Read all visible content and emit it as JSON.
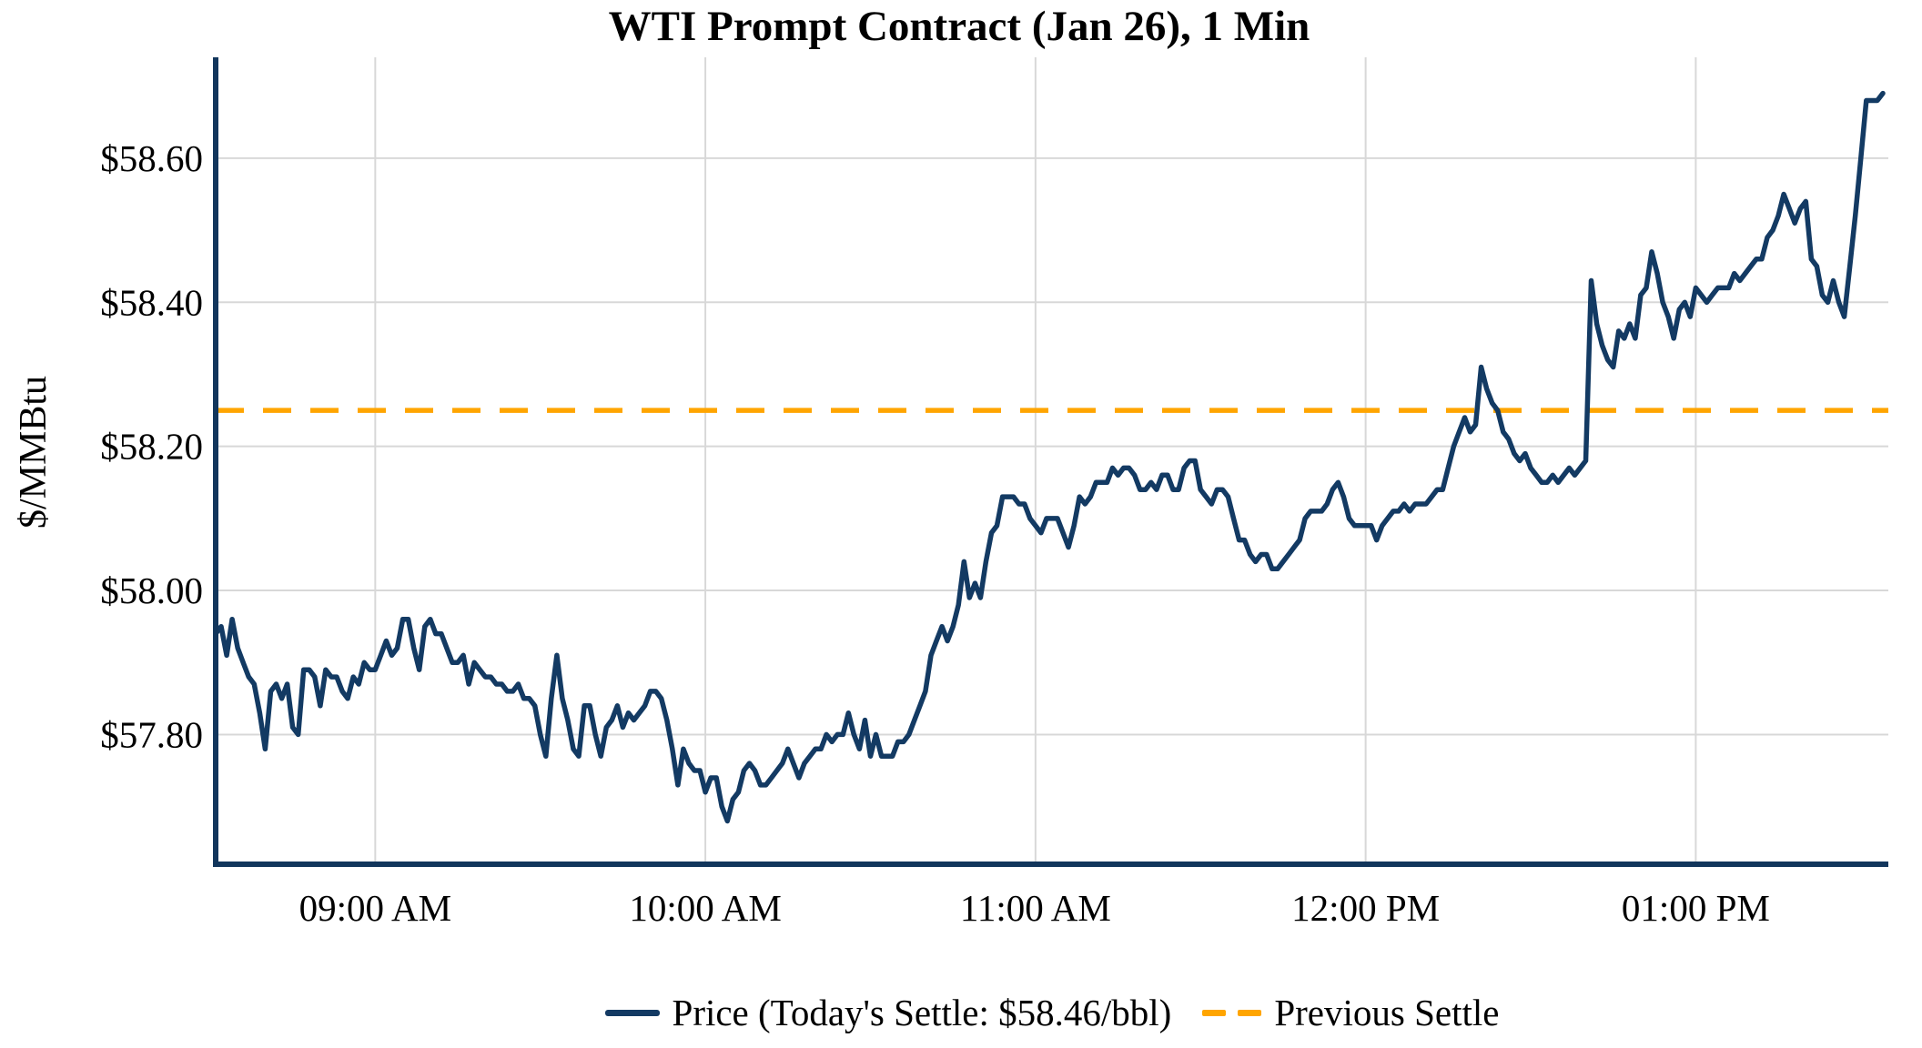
{
  "title": "WTI Prompt Contract (Jan 26), 1 Min",
  "y_axis": {
    "label": "$/MMBtu"
  },
  "legend": {
    "price_label": "Price (Today's Settle: $58.46/bbl)",
    "prev_settle_label": "Previous Settle"
  },
  "colors": {
    "price_line": "#133a63",
    "axis_spine": "#12365c",
    "prev_settle": "#ffa500",
    "grid": "#d8d8d8",
    "text": "#000000",
    "background": "#ffffff"
  },
  "chart_data": {
    "type": "line",
    "title": "WTI Prompt Contract (Jan 26), 1 Min",
    "xlabel": "",
    "ylabel": "$/MMBtu",
    "grid": true,
    "legend_position": "bottom",
    "ylim": [
      57.62,
      58.74
    ],
    "x_range_minutes": [
      511,
      815
    ],
    "x_tick_labels": [
      "09:00 AM",
      "10:00 AM",
      "11:00 AM",
      "12:00 PM",
      "01:00 PM"
    ],
    "y_ticks": [
      57.8,
      58.0,
      58.2,
      58.4,
      58.6
    ],
    "y_tick_prefix": "$",
    "previous_settle": 58.25,
    "todays_settle": 58.46,
    "series": [
      {
        "name": "Price",
        "start_time": "08:31 AM",
        "interval_minutes": 1,
        "values": [
          57.94,
          57.95,
          57.91,
          57.96,
          57.92,
          57.9,
          57.88,
          57.87,
          57.83,
          57.78,
          57.86,
          57.87,
          57.85,
          57.87,
          57.81,
          57.8,
          57.89,
          57.89,
          57.88,
          57.84,
          57.89,
          57.88,
          57.88,
          57.86,
          57.85,
          57.88,
          57.87,
          57.9,
          57.89,
          57.89,
          57.91,
          57.93,
          57.91,
          57.92,
          57.96,
          57.96,
          57.92,
          57.89,
          57.95,
          57.96,
          57.94,
          57.94,
          57.92,
          57.9,
          57.9,
          57.91,
          57.87,
          57.9,
          57.89,
          57.88,
          57.88,
          57.87,
          57.87,
          57.86,
          57.86,
          57.87,
          57.85,
          57.85,
          57.84,
          57.8,
          57.77,
          57.85,
          57.91,
          57.85,
          57.82,
          57.78,
          57.77,
          57.84,
          57.84,
          57.8,
          57.77,
          57.81,
          57.82,
          57.84,
          57.81,
          57.83,
          57.82,
          57.83,
          57.84,
          57.86,
          57.86,
          57.85,
          57.82,
          57.78,
          57.73,
          57.78,
          57.76,
          57.75,
          57.75,
          57.72,
          57.74,
          57.74,
          57.7,
          57.68,
          57.71,
          57.72,
          57.75,
          57.76,
          57.75,
          57.73,
          57.73,
          57.74,
          57.75,
          57.76,
          57.78,
          57.76,
          57.74,
          57.76,
          57.77,
          57.78,
          57.78,
          57.8,
          57.79,
          57.8,
          57.8,
          57.83,
          57.8,
          57.78,
          57.82,
          57.77,
          57.8,
          57.77,
          57.77,
          57.77,
          57.79,
          57.79,
          57.8,
          57.82,
          57.84,
          57.86,
          57.91,
          57.93,
          57.95,
          57.93,
          57.95,
          57.98,
          58.04,
          57.99,
          58.01,
          57.99,
          58.04,
          58.08,
          58.09,
          58.13,
          58.13,
          58.13,
          58.12,
          58.12,
          58.1,
          58.09,
          58.08,
          58.1,
          58.1,
          58.1,
          58.08,
          58.06,
          58.09,
          58.13,
          58.12,
          58.13,
          58.15,
          58.15,
          58.15,
          58.17,
          58.16,
          58.17,
          58.17,
          58.16,
          58.14,
          58.14,
          58.15,
          58.14,
          58.16,
          58.16,
          58.14,
          58.14,
          58.17,
          58.18,
          58.18,
          58.14,
          58.13,
          58.12,
          58.14,
          58.14,
          58.13,
          58.1,
          58.07,
          58.07,
          58.05,
          58.04,
          58.05,
          58.05,
          58.03,
          58.03,
          58.04,
          58.05,
          58.06,
          58.07,
          58.1,
          58.11,
          58.11,
          58.11,
          58.12,
          58.14,
          58.15,
          58.13,
          58.1,
          58.09,
          58.09,
          58.09,
          58.09,
          58.07,
          58.09,
          58.1,
          58.11,
          58.11,
          58.12,
          58.11,
          58.12,
          58.12,
          58.12,
          58.13,
          58.14,
          58.14,
          58.17,
          58.2,
          58.22,
          58.24,
          58.22,
          58.23,
          58.31,
          58.28,
          58.26,
          58.25,
          58.22,
          58.21,
          58.19,
          58.18,
          58.19,
          58.17,
          58.16,
          58.15,
          58.15,
          58.16,
          58.15,
          58.16,
          58.17,
          58.16,
          58.17,
          58.18,
          58.43,
          58.37,
          58.34,
          58.32,
          58.31,
          58.36,
          58.35,
          58.37,
          58.35,
          58.41,
          58.42,
          58.47,
          58.44,
          58.4,
          58.38,
          58.35,
          58.39,
          58.4,
          58.38,
          58.42,
          58.41,
          58.4,
          58.41,
          58.42,
          58.42,
          58.42,
          58.44,
          58.43,
          58.44,
          58.45,
          58.46,
          58.46,
          58.49,
          58.5,
          58.52,
          58.55,
          58.53,
          58.51,
          58.53,
          58.54,
          58.46,
          58.45,
          58.41,
          58.4,
          58.43,
          58.4,
          58.38,
          58.45,
          58.52,
          58.6,
          58.68,
          58.68,
          58.68,
          58.69
        ]
      }
    ]
  }
}
